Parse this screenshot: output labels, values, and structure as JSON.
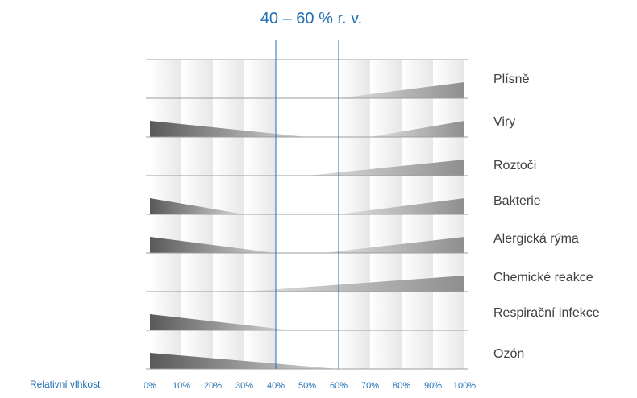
{
  "chart_data": {
    "type": "area",
    "title": "40 – 60 % r. v.",
    "xlabel": "Relativní vlhkost",
    "x_ticks": [
      "0%",
      "10%",
      "20%",
      "30%",
      "40%",
      "50%",
      "60%",
      "70%",
      "80%",
      "90%",
      "100%"
    ],
    "xlim": [
      0,
      100
    ],
    "reference_lines": [
      40,
      60
    ],
    "series": [
      {
        "name": "Plísně",
        "points": [
          [
            0,
            0
          ],
          [
            60,
            0
          ],
          [
            100,
            0.35
          ]
        ]
      },
      {
        "name": "Viry",
        "points": [
          [
            0,
            0.35
          ],
          [
            50,
            0
          ],
          [
            70,
            0
          ],
          [
            100,
            0.35
          ]
        ]
      },
      {
        "name": "Roztoči",
        "points": [
          [
            0,
            0
          ],
          [
            50,
            0
          ],
          [
            100,
            0.35
          ]
        ]
      },
      {
        "name": "Bakterie",
        "points": [
          [
            0,
            0.35
          ],
          [
            30,
            0
          ],
          [
            60,
            0
          ],
          [
            100,
            0.35
          ]
        ]
      },
      {
        "name": "Alergická rýma",
        "points": [
          [
            0,
            0.35
          ],
          [
            40,
            0
          ],
          [
            55,
            0
          ],
          [
            100,
            0.35
          ]
        ]
      },
      {
        "name": "Chemické reakce",
        "points": [
          [
            0,
            0
          ],
          [
            30,
            0
          ],
          [
            100,
            0.35
          ]
        ]
      },
      {
        "name": "Respirační infekce",
        "points": [
          [
            0,
            0.35
          ],
          [
            45,
            0
          ],
          [
            100,
            0
          ]
        ]
      },
      {
        "name": "Ozón",
        "points": [
          [
            0,
            0.35
          ],
          [
            60,
            0
          ],
          [
            100,
            0
          ]
        ]
      }
    ]
  },
  "colors": {
    "accent": "#1f6fb3",
    "row_line": "#9e9e9e",
    "wedge_dark": "#5a5a5a",
    "wedge_light": "#d6d6d6",
    "label": "#404040"
  }
}
